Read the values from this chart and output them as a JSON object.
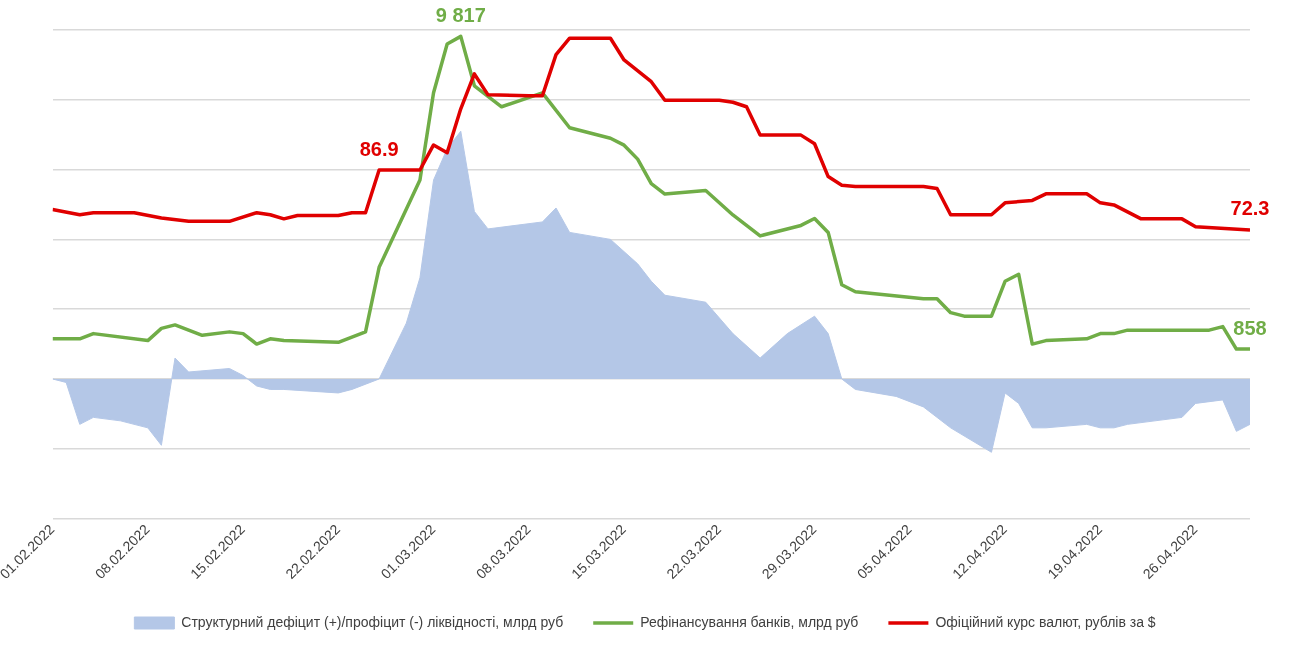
{
  "chart_data": {
    "type": "line",
    "xlim": [
      "2022-02-01",
      "2022-04-30"
    ],
    "xticks": [
      {
        "value": "2022-02-01",
        "label": "01.02.2022"
      },
      {
        "value": "2022-02-08",
        "label": "08.02.2022"
      },
      {
        "value": "2022-02-15",
        "label": "15.02.2022"
      },
      {
        "value": "2022-02-22",
        "label": "22.02.2022"
      },
      {
        "value": "2022-03-01",
        "label": "01.03.2022"
      },
      {
        "value": "2022-03-08",
        "label": "08.03.2022"
      },
      {
        "value": "2022-03-15",
        "label": "15.03.2022"
      },
      {
        "value": "2022-03-22",
        "label": "22.03.2022"
      },
      {
        "value": "2022-03-29",
        "label": "29.03.2022"
      },
      {
        "value": "2022-04-05",
        "label": "05.04.2022"
      },
      {
        "value": "2022-04-12",
        "label": "12.04.2022"
      },
      {
        "value": "2022-04-19",
        "label": "19.04.2022"
      },
      {
        "value": "2022-04-26",
        "label": "26.04.2022"
      }
    ],
    "ylim": [
      -4000,
      10000
    ],
    "yticks": [
      {
        "value": -4000,
        "label": null
      },
      {
        "value": -2000,
        "label": null
      },
      {
        "value": 0,
        "label": null
      },
      {
        "value": 2000,
        "label": null
      },
      {
        "value": 4000,
        "label": null
      },
      {
        "value": 6000,
        "label": null
      },
      {
        "value": 8000,
        "label": null
      },
      {
        "value": 10000,
        "label": null
      }
    ],
    "y2lim": [
      2,
      121
    ],
    "tick_labels": "x",
    "grid": "y",
    "legend": "bottom",
    "series": [
      {
        "name": "Структурний дефіцит (+)/профіцит (-) ліквідності, млрд руб",
        "type": "area",
        "color": "#b4c7e7",
        "x": [
          "2022-02-01",
          "2022-02-02",
          "2022-02-03",
          "2022-02-04",
          "2022-02-06",
          "2022-02-08",
          "2022-02-09",
          "2022-02-10",
          "2022-02-11",
          "2022-02-14",
          "2022-02-15",
          "2022-02-16",
          "2022-02-17",
          "2022-02-18",
          "2022-02-22",
          "2022-02-23",
          "2022-02-25",
          "2022-02-27",
          "2022-02-28",
          "2022-03-01",
          "2022-03-02",
          "2022-03-03",
          "2022-03-04",
          "2022-03-05",
          "2022-03-09",
          "2022-03-10",
          "2022-03-11",
          "2022-03-14",
          "2022-03-16",
          "2022-03-17",
          "2022-03-18",
          "2022-03-21",
          "2022-03-23",
          "2022-03-25",
          "2022-03-27",
          "2022-03-29",
          "2022-03-30",
          "2022-03-31",
          "2022-04-01",
          "2022-04-04",
          "2022-04-06",
          "2022-04-08",
          "2022-04-11",
          "2022-04-12",
          "2022-04-13",
          "2022-04-14",
          "2022-04-15",
          "2022-04-18",
          "2022-04-19",
          "2022-04-20",
          "2022-04-21",
          "2022-04-25",
          "2022-04-26",
          "2022-04-28",
          "2022-04-29",
          "2022-04-30"
        ],
        "values": [
          0,
          -100,
          -1300,
          -1100,
          -1200,
          -1400,
          -1900,
          600,
          200,
          300,
          100,
          -200,
          -300,
          -300,
          -400,
          -300,
          0,
          1600,
          2900,
          5700,
          6600,
          7100,
          4800,
          4300,
          4500,
          4900,
          4200,
          4000,
          3300,
          2800,
          2400,
          2200,
          1300,
          600,
          1300,
          1800,
          1300,
          0,
          -300,
          -500,
          -800,
          -1400,
          -2100,
          -400,
          -700,
          -1400,
          -1400,
          -1300,
          -1400,
          -1400,
          -1300,
          -1100,
          -700,
          -600,
          -1500,
          -1300
        ]
      },
      {
        "name": "Рефінансування банків, млрд руб",
        "type": "line",
        "color": "#70ad47",
        "x": [
          "2022-02-01",
          "2022-02-03",
          "2022-02-04",
          "2022-02-08",
          "2022-02-09",
          "2022-02-10",
          "2022-02-12",
          "2022-02-14",
          "2022-02-15",
          "2022-02-16",
          "2022-02-17",
          "2022-02-18",
          "2022-02-22",
          "2022-02-24",
          "2022-02-25",
          "2022-02-28",
          "2022-03-01",
          "2022-03-02",
          "2022-03-03",
          "2022-03-04",
          "2022-03-06",
          "2022-03-09",
          "2022-03-11",
          "2022-03-14",
          "2022-03-15",
          "2022-03-16",
          "2022-03-17",
          "2022-03-18",
          "2022-03-21",
          "2022-03-23",
          "2022-03-25",
          "2022-03-28",
          "2022-03-29",
          "2022-03-30",
          "2022-03-31",
          "2022-04-01",
          "2022-04-06",
          "2022-04-07",
          "2022-04-08",
          "2022-04-09",
          "2022-04-11",
          "2022-04-12",
          "2022-04-13",
          "2022-04-14",
          "2022-04-15",
          "2022-04-18",
          "2022-04-19",
          "2022-04-20",
          "2022-04-21",
          "2022-04-27",
          "2022-04-28",
          "2022-04-29",
          "2022-04-30"
        ],
        "values": [
          1150,
          1150,
          1300,
          1100,
          1450,
          1550,
          1250,
          1350,
          1300,
          1000,
          1150,
          1100,
          1050,
          1350,
          3200,
          5700,
          8200,
          9600,
          9817,
          8400,
          7800,
          8200,
          7200,
          6900,
          6700,
          6300,
          5600,
          5300,
          5400,
          4700,
          4100,
          4400,
          4600,
          4200,
          2700,
          2500,
          2300,
          2300,
          1900,
          1800,
          1800,
          2800,
          3000,
          1000,
          1100,
          1150,
          1300,
          1300,
          1400,
          1400,
          1500,
          858,
          858
        ],
        "value_labels": [
          null,
          null,
          null,
          null,
          null,
          null,
          null,
          null,
          null,
          null,
          null,
          null,
          null,
          null,
          null,
          null,
          null,
          null,
          "9 817",
          null,
          null,
          null,
          null,
          null,
          null,
          null,
          null,
          null,
          null,
          null,
          null,
          null,
          null,
          null,
          null,
          null,
          null,
          null,
          null,
          null,
          null,
          null,
          null,
          null,
          null,
          null,
          null,
          null,
          null,
          null,
          null,
          null,
          "858"
        ]
      },
      {
        "name": "Офіційний курс валют, рублів за $",
        "type": "line",
        "axis": "y2",
        "color": "#e00000",
        "x": [
          "2022-02-01",
          "2022-02-03",
          "2022-02-04",
          "2022-02-07",
          "2022-02-09",
          "2022-02-11",
          "2022-02-14",
          "2022-02-16",
          "2022-02-17",
          "2022-02-18",
          "2022-02-19",
          "2022-02-22",
          "2022-02-23",
          "2022-02-24",
          "2022-02-25",
          "2022-02-28",
          "2022-03-01",
          "2022-03-02",
          "2022-03-03",
          "2022-03-04",
          "2022-03-05",
          "2022-03-08",
          "2022-03-09",
          "2022-03-10",
          "2022-03-11",
          "2022-03-14",
          "2022-03-15",
          "2022-03-17",
          "2022-03-18",
          "2022-03-22",
          "2022-03-23",
          "2022-03-24",
          "2022-03-25",
          "2022-03-28",
          "2022-03-29",
          "2022-03-30",
          "2022-03-31",
          "2022-04-01",
          "2022-04-06",
          "2022-04-07",
          "2022-04-08",
          "2022-04-11",
          "2022-04-12",
          "2022-04-14",
          "2022-04-15",
          "2022-04-18",
          "2022-04-19",
          "2022-04-20",
          "2022-04-22",
          "2022-04-25",
          "2022-04-26",
          "2022-04-30"
        ],
        "values": [
          77.3,
          76.0,
          76.5,
          76.5,
          75.2,
          74.4,
          74.4,
          76.5,
          76.0,
          75.0,
          75.8,
          75.8,
          76.5,
          76.5,
          86.9,
          86.9,
          93.0,
          91.1,
          101.8,
          110.3,
          105.2,
          105.0,
          105.0,
          115.0,
          119.0,
          119.0,
          113.7,
          108.4,
          103.9,
          103.9,
          103.4,
          102.3,
          95.4,
          95.4,
          93.3,
          85.3,
          83.2,
          82.9,
          82.9,
          82.4,
          76.0,
          76.0,
          78.9,
          79.5,
          81.1,
          81.1,
          78.9,
          78.4,
          75.0,
          75.0,
          73.1,
          72.3
        ],
        "value_labels": [
          null,
          null,
          null,
          null,
          null,
          null,
          null,
          null,
          null,
          null,
          null,
          null,
          null,
          null,
          "86.9",
          null,
          null,
          null,
          null,
          null,
          null,
          null,
          null,
          null,
          null,
          null,
          null,
          null,
          null,
          null,
          null,
          null,
          null,
          null,
          null,
          null,
          null,
          null,
          null,
          null,
          null,
          null,
          null,
          null,
          null,
          null,
          null,
          null,
          null,
          null,
          null,
          "72.3"
        ]
      }
    ]
  }
}
